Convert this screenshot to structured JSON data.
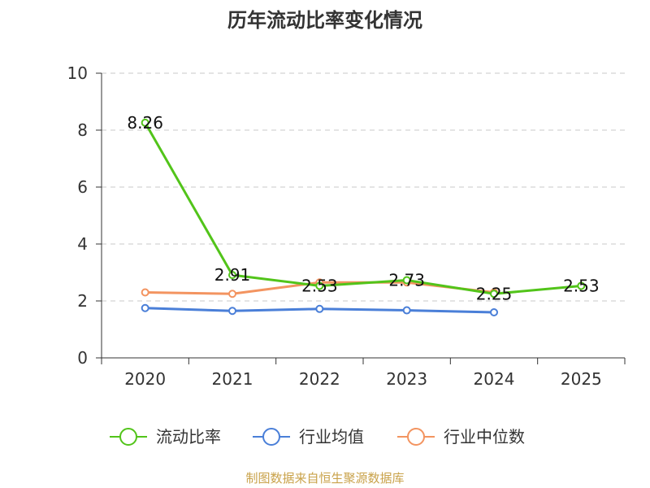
{
  "title": "历年流动比率变化情况",
  "source": "制图数据来自恒生聚源数据库",
  "chart_data": {
    "type": "line",
    "title": "历年流动比率变化情况",
    "categories": [
      "2020",
      "2021",
      "2022",
      "2023",
      "2024",
      "2025"
    ],
    "ylim": [
      0,
      10
    ],
    "yticks": [
      0,
      2,
      4,
      6,
      8,
      10
    ],
    "grid": true,
    "legend_position": "bottom",
    "series": [
      {
        "name": "流动比率",
        "color": "#52c41a",
        "values": [
          8.26,
          2.91,
          2.53,
          2.73,
          2.25,
          2.53
        ],
        "labels": [
          "8.26",
          "2.91",
          "2.53",
          "2.73",
          "2.25",
          "2.53"
        ]
      },
      {
        "name": "行业均值",
        "color": "#4a7fd8",
        "values": [
          1.75,
          1.65,
          1.72,
          1.67,
          1.6,
          null
        ]
      },
      {
        "name": "行业中位数",
        "color": "#f39460",
        "values": [
          2.3,
          2.25,
          2.65,
          2.65,
          2.3,
          null
        ]
      }
    ]
  }
}
